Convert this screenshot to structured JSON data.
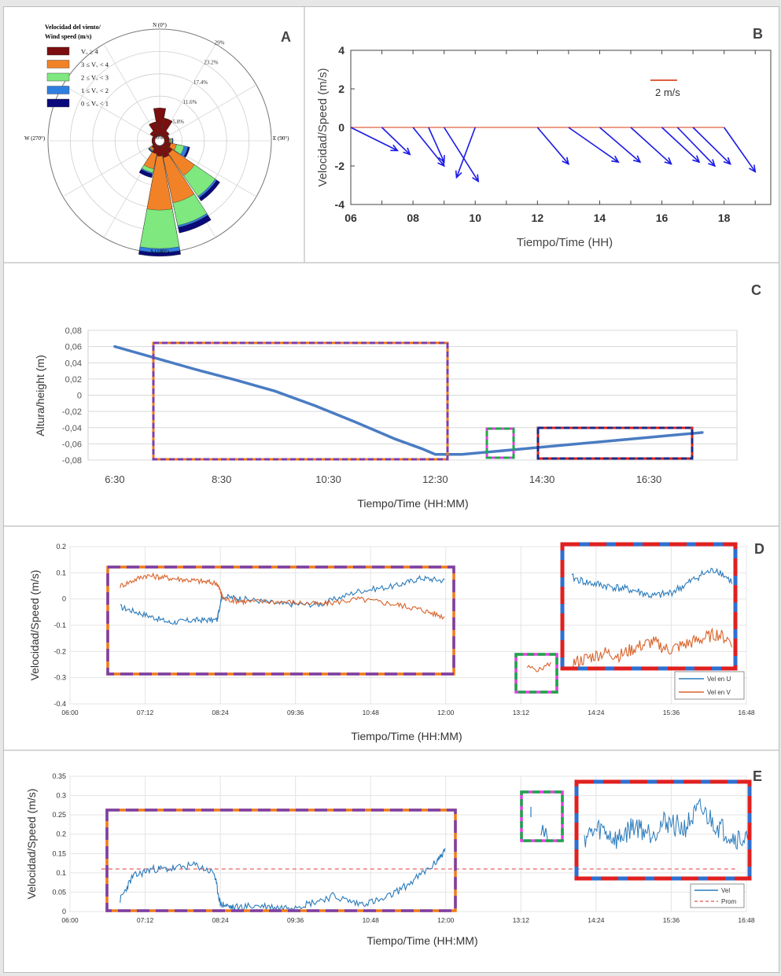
{
  "colors": {
    "dark_red": "#7b0e0e",
    "orange": "#f28227",
    "green": "#7fe87f",
    "blue": "#2f7fe0",
    "navy": "#0a0a7a",
    "quiver_blue": "#1a1ae6",
    "line_blue": "#2b7bbb",
    "line_orange": "#d9632b",
    "purple": "#7b3fa8",
    "box_orange": "#f07a1a",
    "box_red": "#e02020",
    "box_blue": "#2f6fd0",
    "box_green": "#1fa64a",
    "box_magenta": "#e040e0"
  },
  "panels": {
    "A": "A",
    "B": "B",
    "C": "C",
    "D": "D",
    "E": "E"
  },
  "windrose": {
    "legend_title_1": "Velocidad del viento/",
    "legend_title_2": "Wind speed (m/s)",
    "legend": [
      {
        "label": "Vᵥ ≥ 4",
        "color": "#7b0e0e"
      },
      {
        "label": "3 ≤ Vᵥ < 4",
        "color": "#f28227"
      },
      {
        "label": "2 ≤ Vᵥ < 3",
        "color": "#7fe87f"
      },
      {
        "label": "1 ≤ Vᵥ < 2",
        "color": "#2f7fe0"
      },
      {
        "label": "0 ≤ Vᵥ < 1",
        "color": "#0a0a7a"
      }
    ],
    "dir_n": "N (0°)",
    "dir_e": "E (90°)",
    "dir_s": "S (180°)",
    "dir_w": "W (270°)",
    "center": "0%",
    "ring_labels": [
      "5.8%",
      "11.6%",
      "17.4%",
      "23.2%",
      "29%"
    ]
  },
  "chart_data": [
    {
      "type": "rose",
      "panel": "A",
      "title": "",
      "legend_title": "Velocidad del viento/ Wind speed (m/s)",
      "bins": [
        "Vᵥ ≥ 4",
        "3 ≤ Vᵥ < 4",
        "2 ≤ Vᵥ < 3",
        "1 ≤ Vᵥ < 2",
        "0 ≤ Vᵥ < 1"
      ],
      "ring_max_pct": 29,
      "directions_deg": [
        0,
        22.5,
        45,
        67.5,
        90,
        112.5,
        135,
        157.5,
        180,
        202.5,
        225,
        247.5,
        270,
        292.5,
        315,
        337.5
      ],
      "cumulative_pct": [
        [
          8.5,
          6.0,
          3.0,
          2.5,
          2.5,
          3.0,
          4.0,
          4.5,
          4.0,
          3.5,
          2.5,
          2.0,
          2.0,
          2.0,
          3.0,
          5.0
        ],
        [
          8.5,
          6.0,
          3.0,
          2.5,
          2.8,
          4.5,
          11.0,
          16.5,
          18.0,
          7.5,
          3.0,
          2.0,
          2.0,
          2.0,
          3.0,
          5.0
        ],
        [
          8.5,
          6.0,
          3.0,
          2.5,
          3.2,
          6.5,
          17.5,
          22.5,
          28.0,
          8.5,
          3.2,
          2.0,
          2.0,
          2.0,
          3.0,
          5.0
        ],
        [
          8.5,
          6.0,
          3.0,
          2.5,
          3.4,
          7.5,
          18.0,
          23.0,
          29.0,
          8.8,
          3.4,
          2.0,
          2.0,
          2.0,
          3.0,
          5.0
        ],
        [
          8.5,
          6.0,
          3.0,
          2.5,
          3.5,
          8.0,
          19.0,
          24.5,
          30.0,
          9.8,
          3.6,
          2.0,
          2.0,
          2.0,
          3.0,
          5.0
        ]
      ]
    },
    {
      "type": "quiver",
      "panel": "B",
      "title": "",
      "xlabel": "Tiempo/Time (HH)",
      "ylabel": "Velocidad/Speed (m/s)",
      "xticks": [
        "06",
        "08",
        "10",
        "12",
        "14",
        "16",
        "18"
      ],
      "yticks": [
        -4,
        -2,
        0,
        2,
        4
      ],
      "xlim": [
        6,
        19.5
      ],
      "ylim": [
        -4,
        4
      ],
      "scale_label": "2 m/s",
      "arrows": [
        {
          "x": 6,
          "u": 1.5,
          "v": -1.2
        },
        {
          "x": 7,
          "u": 0.9,
          "v": -1.4
        },
        {
          "x": 8,
          "u": 1.0,
          "v": -2.0
        },
        {
          "x": 8.5,
          "u": 0.5,
          "v": -1.8
        },
        {
          "x": 9,
          "u": 1.1,
          "v": -2.8
        },
        {
          "x": 10,
          "u": -0.6,
          "v": -2.6
        },
        {
          "x": 12,
          "u": 1.0,
          "v": -1.9
        },
        {
          "x": 13,
          "u": 1.6,
          "v": -1.8
        },
        {
          "x": 14,
          "u": 1.3,
          "v": -1.8
        },
        {
          "x": 15,
          "u": 1.3,
          "v": -1.9
        },
        {
          "x": 16,
          "u": 1.2,
          "v": -1.8
        },
        {
          "x": 16.5,
          "u": 1.2,
          "v": -2.0
        },
        {
          "x": 17,
          "u": 1.2,
          "v": -1.9
        },
        {
          "x": 18,
          "u": 1.0,
          "v": -2.3
        }
      ]
    },
    {
      "type": "line",
      "panel": "C",
      "title": "",
      "xlabel": "Tiempo/Time  (HH:MM)",
      "ylabel": "Altura/height (m)",
      "xticks": [
        "6:30",
        "8:30",
        "10:30",
        "12:30",
        "14:30",
        "16:30"
      ],
      "yticks": [
        "0,08",
        "0,06",
        "0,04",
        "0,02",
        "0",
        "-0,02",
        "-0,04",
        "-0,06",
        "-0,08"
      ],
      "ylim": [
        -0.08,
        0.08
      ],
      "x_hours": [
        6.5,
        7.25,
        8.0,
        8.75,
        9.5,
        10.25,
        11.0,
        11.75,
        12.25,
        12.5,
        13.0,
        13.5,
        14.0,
        14.5,
        15.0,
        15.5,
        16.0,
        16.5,
        17.0,
        17.5
      ],
      "y": [
        0.06,
        0.046,
        0.032,
        0.019,
        0.005,
        -0.013,
        -0.033,
        -0.054,
        -0.066,
        -0.073,
        -0.073,
        -0.07,
        -0.067,
        -0.064,
        -0.061,
        -0.058,
        -0.055,
        -0.052,
        -0.049,
        -0.046
      ]
    },
    {
      "type": "line",
      "panel": "D",
      "title": "",
      "xlabel": "Tiempo/Time  (HH:MM)",
      "ylabel": "Velocidad/Speed (m/s)",
      "xticks": [
        "06:00",
        "07:12",
        "08:24",
        "09:36",
        "10:48",
        "12:00",
        "13:12",
        "14:24",
        "15:36",
        "16:48"
      ],
      "yticks": [
        "0.2",
        "0.1",
        "0",
        "-0.1",
        "-0.2",
        "-0.3",
        "-0.4"
      ],
      "ylim": [
        -0.4,
        0.2
      ],
      "series": [
        {
          "name": "Vel en U",
          "color": "#2b7bbb",
          "x_hours": [
            6.8,
            7.2,
            7.6,
            8.0,
            8.35,
            8.42,
            8.8,
            9.4,
            10.0,
            10.6,
            11.2,
            11.6,
            12.0
          ],
          "y": [
            -0.03,
            -0.06,
            -0.09,
            -0.08,
            -0.08,
            0.01,
            0.0,
            -0.02,
            -0.02,
            0.03,
            0.05,
            0.08,
            0.07
          ]
        },
        {
          "name": "Vel en V",
          "color": "#d9632b",
          "x_hours": [
            6.8,
            7.2,
            7.6,
            8.0,
            8.35,
            8.45,
            8.8,
            9.4,
            10.0,
            10.6,
            11.2,
            11.6,
            12.0
          ],
          "y": [
            0.05,
            0.09,
            0.08,
            0.07,
            0.06,
            0.0,
            -0.01,
            -0.01,
            -0.02,
            0.0,
            -0.02,
            -0.04,
            -0.07
          ]
        }
      ],
      "inset_x_hours": [
        13.6,
        13.9,
        14.2,
        14.5,
        14.8,
        15.1,
        15.4,
        15.7,
        16.0,
        16.3,
        16.6
      ],
      "inset_u": [
        0.02,
        0.0,
        -0.01,
        -0.02,
        -0.03,
        -0.05,
        -0.04,
        -0.01,
        0.03,
        0.05,
        0.0
      ],
      "inset_v": [
        -0.3,
        -0.28,
        -0.26,
        -0.27,
        -0.24,
        -0.22,
        -0.25,
        -0.23,
        -0.21,
        -0.19,
        -0.22
      ]
    },
    {
      "type": "line",
      "panel": "E",
      "title": "",
      "xlabel": "Tiempo/Time  (HH:MM)",
      "ylabel": "Velocidad/Speed (m/s)",
      "xticks": [
        "06:00",
        "07:12",
        "08:24",
        "09:36",
        "10:48",
        "12:00",
        "13:12",
        "14:24",
        "15:36",
        "16:48"
      ],
      "yticks": [
        "0.35",
        "0.3",
        "0.25",
        "0.2",
        "0.15",
        "0.1",
        "0.05",
        "0"
      ],
      "ylim": [
        0,
        0.35
      ],
      "series": [
        {
          "name": "Vel",
          "color": "#2b7bbb",
          "x_hours": [
            6.8,
            7.0,
            7.3,
            7.6,
            8.0,
            8.3,
            8.4,
            8.6,
            9.0,
            9.4,
            9.8,
            10.2,
            10.6,
            11.0,
            11.4,
            11.8,
            12.0
          ],
          "y": [
            0.03,
            0.09,
            0.11,
            0.11,
            0.12,
            0.1,
            0.02,
            0.01,
            0.015,
            0.01,
            0.02,
            0.04,
            0.02,
            0.03,
            0.07,
            0.12,
            0.16
          ]
        },
        {
          "name": "Prom",
          "color": "#e85050",
          "value": 0.11
        }
      ],
      "inset_x_hours": [
        13.8,
        14.1,
        14.4,
        14.7,
        15.0,
        15.3,
        15.6,
        15.9,
        16.2,
        16.5,
        16.8
      ],
      "inset_y": [
        0.17,
        0.19,
        0.16,
        0.2,
        0.18,
        0.21,
        0.19,
        0.24,
        0.2,
        0.17,
        0.16
      ]
    }
  ],
  "legend_d": [
    "Vel en U",
    "Vel en V"
  ],
  "legend_e": [
    "Vel",
    "Prom"
  ]
}
